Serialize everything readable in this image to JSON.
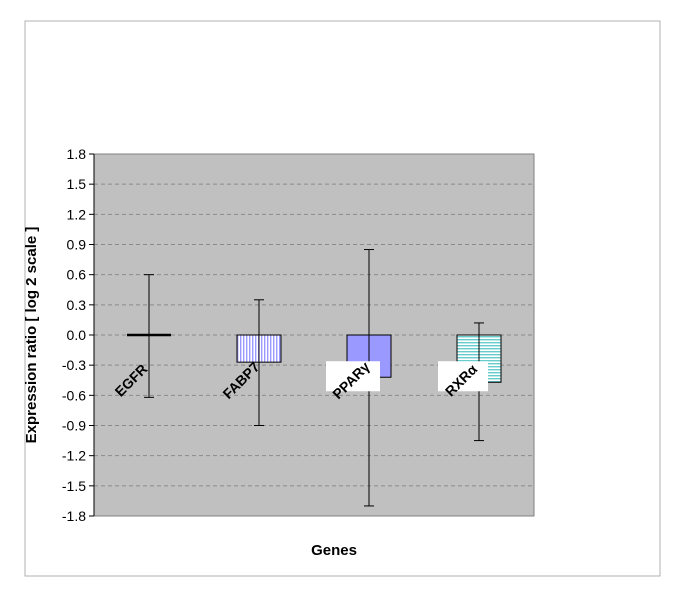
{
  "chart_data": {
    "type": "bar",
    "categories": [
      "EGFR",
      "FABP7",
      "PPARγ",
      "RXRα"
    ],
    "values": [
      0.0,
      -0.27,
      -0.42,
      -0.47
    ],
    "error_upper": [
      0.6,
      0.35,
      0.85,
      0.12
    ],
    "error_lower": [
      -0.62,
      -0.9,
      -1.7,
      -1.05
    ],
    "xlabel": "Genes",
    "ylabel": "Expression ratio [ log 2 scale ]",
    "ylim": [
      -1.8,
      1.8
    ],
    "yticks": [
      "1.8",
      "1.5",
      "1.2",
      "0.9",
      "0.6",
      "0.3",
      "0.0",
      "-0.3",
      "-0.6",
      "-0.9",
      "-1.2",
      "-1.5",
      "-1.8"
    ],
    "grid": true,
    "plot_background": "#c0c0c0",
    "bar_fills": [
      "none",
      "vertical-stripes",
      "solid",
      "horizontal-stripes"
    ],
    "colors": {
      "stripe_blue": "#9999ff",
      "solid_blue": "#9999ff",
      "stripe_teal": "#66cccc"
    }
  }
}
